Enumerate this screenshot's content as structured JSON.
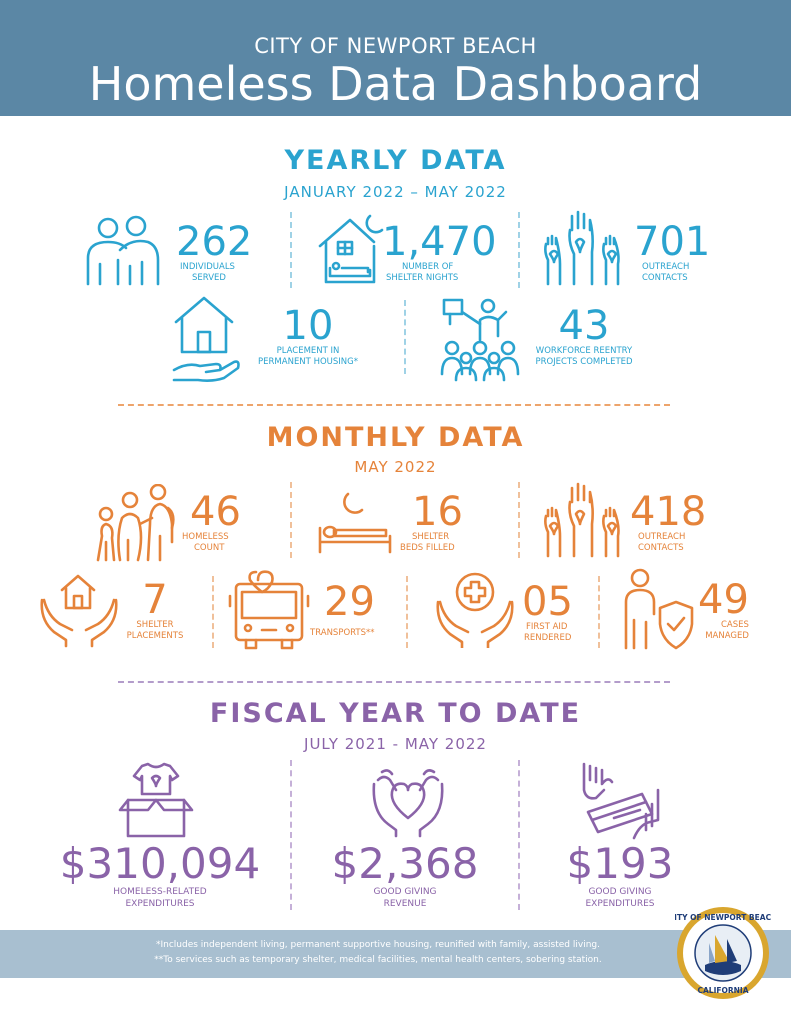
{
  "header": {
    "kicker": "CITY OF NEWPORT BEACH",
    "title": "Homeless Data Dashboard"
  },
  "yearly": {
    "title": "YEARLY DATA",
    "range": "JANUARY 2022 – MAY 2022",
    "stats": [
      {
        "value": "262",
        "label_1": "INDIVIDUALS",
        "label_2": "SERVED",
        "icon": "people-embrace-icon"
      },
      {
        "value": "1,470",
        "label_1": "NUMBER OF",
        "label_2": "SHELTER NIGHTS",
        "icon": "house-bed-moon-icon"
      },
      {
        "value": "701",
        "label_1": "OUTREACH",
        "label_2": "CONTACTS",
        "icon": "raised-hands-heart-icon"
      },
      {
        "value": "10",
        "label_1": "PLACEMENT IN",
        "label_2": "PERMANENT HOUSING*",
        "icon": "hand-house-icon"
      },
      {
        "value": "43",
        "label_1": "WORKFORCE REENTRY",
        "label_2": "PROJECTS COMPLETED",
        "icon": "presenter-audience-icon"
      }
    ]
  },
  "monthly": {
    "title": "MONTHLY DATA",
    "range": "MAY 2022",
    "stats": [
      {
        "value": "46",
        "label_1": "HOMELESS",
        "label_2": "COUNT",
        "icon": "family-walking-icon"
      },
      {
        "value": "16",
        "label_1": "SHELTER",
        "label_2": "BEDS FILLED",
        "icon": "bed-moon-icon"
      },
      {
        "value": "418",
        "label_1": "OUTREACH",
        "label_2": "CONTACTS",
        "icon": "raised-hands-heart-icon"
      },
      {
        "value": "7",
        "label_1": "SHELTER",
        "label_2": "PLACEMENTS",
        "icon": "hands-house-icon"
      },
      {
        "value": "29",
        "label_1": "TRANSPORTS**",
        "label_2": "",
        "icon": "bus-heart-icon"
      },
      {
        "value": "05",
        "label_1": "FIRST AID",
        "label_2": "RENDERED",
        "icon": "hands-medical-cross-icon"
      },
      {
        "value": "49",
        "label_1": "CASES",
        "label_2": "MANAGED",
        "icon": "person-shield-icon"
      }
    ]
  },
  "fiscal": {
    "title": "FISCAL YEAR TO DATE",
    "range": "JULY 2021 - MAY 2022",
    "stats": [
      {
        "value": "$310,094",
        "label_1": "HOMELESS-RELATED",
        "label_2": "EXPENDITURES",
        "icon": "donation-box-shirt-icon"
      },
      {
        "value": "$2,368",
        "label_1": "GOOD GIVING",
        "label_2": "REVENUE",
        "icon": "hands-heart-icon"
      },
      {
        "value": "$193",
        "label_1": "GOOD GIVING",
        "label_2": "EXPENDITURES",
        "icon": "hand-card-icon"
      }
    ]
  },
  "footer": {
    "note_1": "*Includes independent living, permanent supportive housing, reunified with family, assisted living.",
    "note_2": "**To services such as temporary shelter, medical facilities, mental health centers, sobering station.",
    "seal_text_top": "CITY OF NEWPORT BEACH",
    "seal_text_bottom": "CALIFORNIA"
  },
  "colors": {
    "header": "#5b87a5",
    "yearly": "#2aa3cf",
    "monthly": "#e5833a",
    "fiscal": "#8a63a8",
    "footer": "#a8bfd0",
    "seal_gold": "#d9a62e",
    "seal_navy": "#1f3d78"
  }
}
